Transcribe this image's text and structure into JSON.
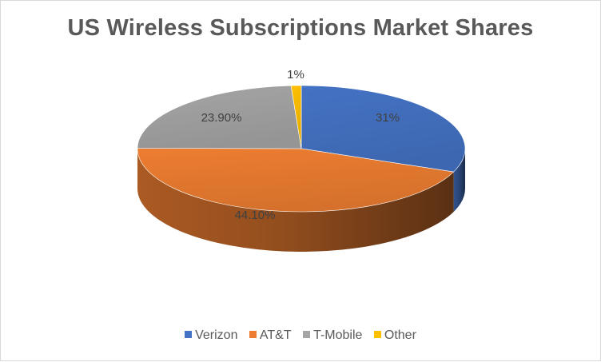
{
  "chart_data": {
    "type": "pie",
    "title": "US Wireless Subscriptions Market Shares",
    "slices": [
      {
        "name": "Verizon",
        "value": 31.0,
        "label": "31%",
        "color": "#4472c4"
      },
      {
        "name": "AT&T",
        "value": 44.1,
        "label": "44.10%",
        "color": "#ed7d31"
      },
      {
        "name": "T-Mobile",
        "value": 23.9,
        "label": "23.90%",
        "color": "#a5a5a5"
      },
      {
        "name": "Other",
        "value": 1.0,
        "label": "1%",
        "color": "#ffc000"
      }
    ],
    "legend_position": "bottom",
    "style": "3d"
  }
}
